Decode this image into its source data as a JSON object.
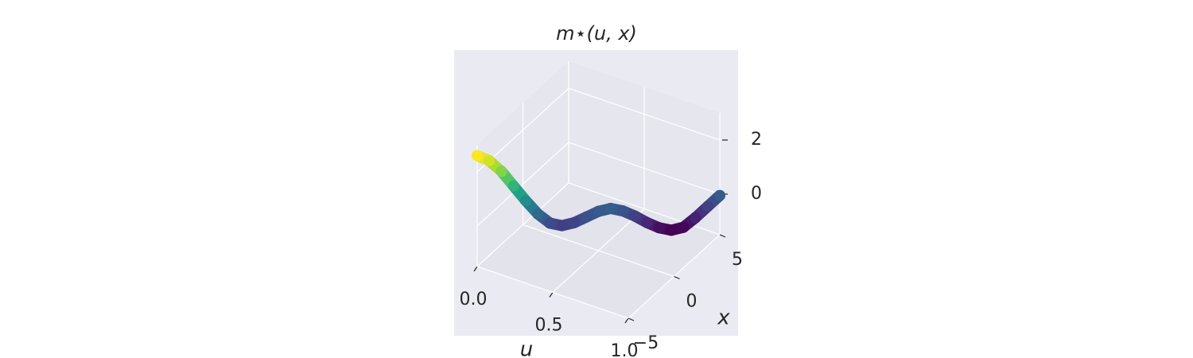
{
  "chart_data": {
    "type": "line3d",
    "title": "m⋆(u, x)",
    "xlabel": "u",
    "ylabel": "x",
    "colormap": "viridis",
    "u": [
      0,
      0.05,
      0.1,
      0.15,
      0.2,
      0.25,
      0.3,
      0.35,
      0.4,
      0.45,
      0.5,
      0.55,
      0.6,
      0.65,
      0.7,
      0.75,
      0.8,
      0.85,
      0.9,
      0.95,
      1
    ],
    "x": [
      -5,
      -4.5,
      -4,
      -3.5,
      -3,
      -2.5,
      -2,
      -1.5,
      -1,
      -0.5,
      0,
      0.5,
      1,
      1.5,
      2,
      2.5,
      3,
      3.5,
      4,
      4.5,
      5
    ],
    "values": [
      2.6,
      2.35,
      1.9,
      1.3,
      0.7,
      0.15,
      -0.25,
      -0.4,
      -0.35,
      -0.2,
      -0.05,
      0.0,
      -0.15,
      -0.4,
      -0.7,
      -0.95,
      -1.1,
      -1.05,
      -0.75,
      -0.4,
      -0.05
    ],
    "ulim": [
      0,
      1
    ],
    "uticks": [
      {
        "value": 0,
        "label": "0.0"
      },
      0.5,
      {
        "value": 1,
        "label": "1.0"
      }
    ],
    "xlim": [
      -5,
      5
    ],
    "xticks": [
      {
        "value": -5,
        "label": "−5"
      },
      0,
      5
    ],
    "zlim": [
      -1.5,
      3
    ],
    "zticks": [
      0,
      2
    ],
    "grid": true
  }
}
